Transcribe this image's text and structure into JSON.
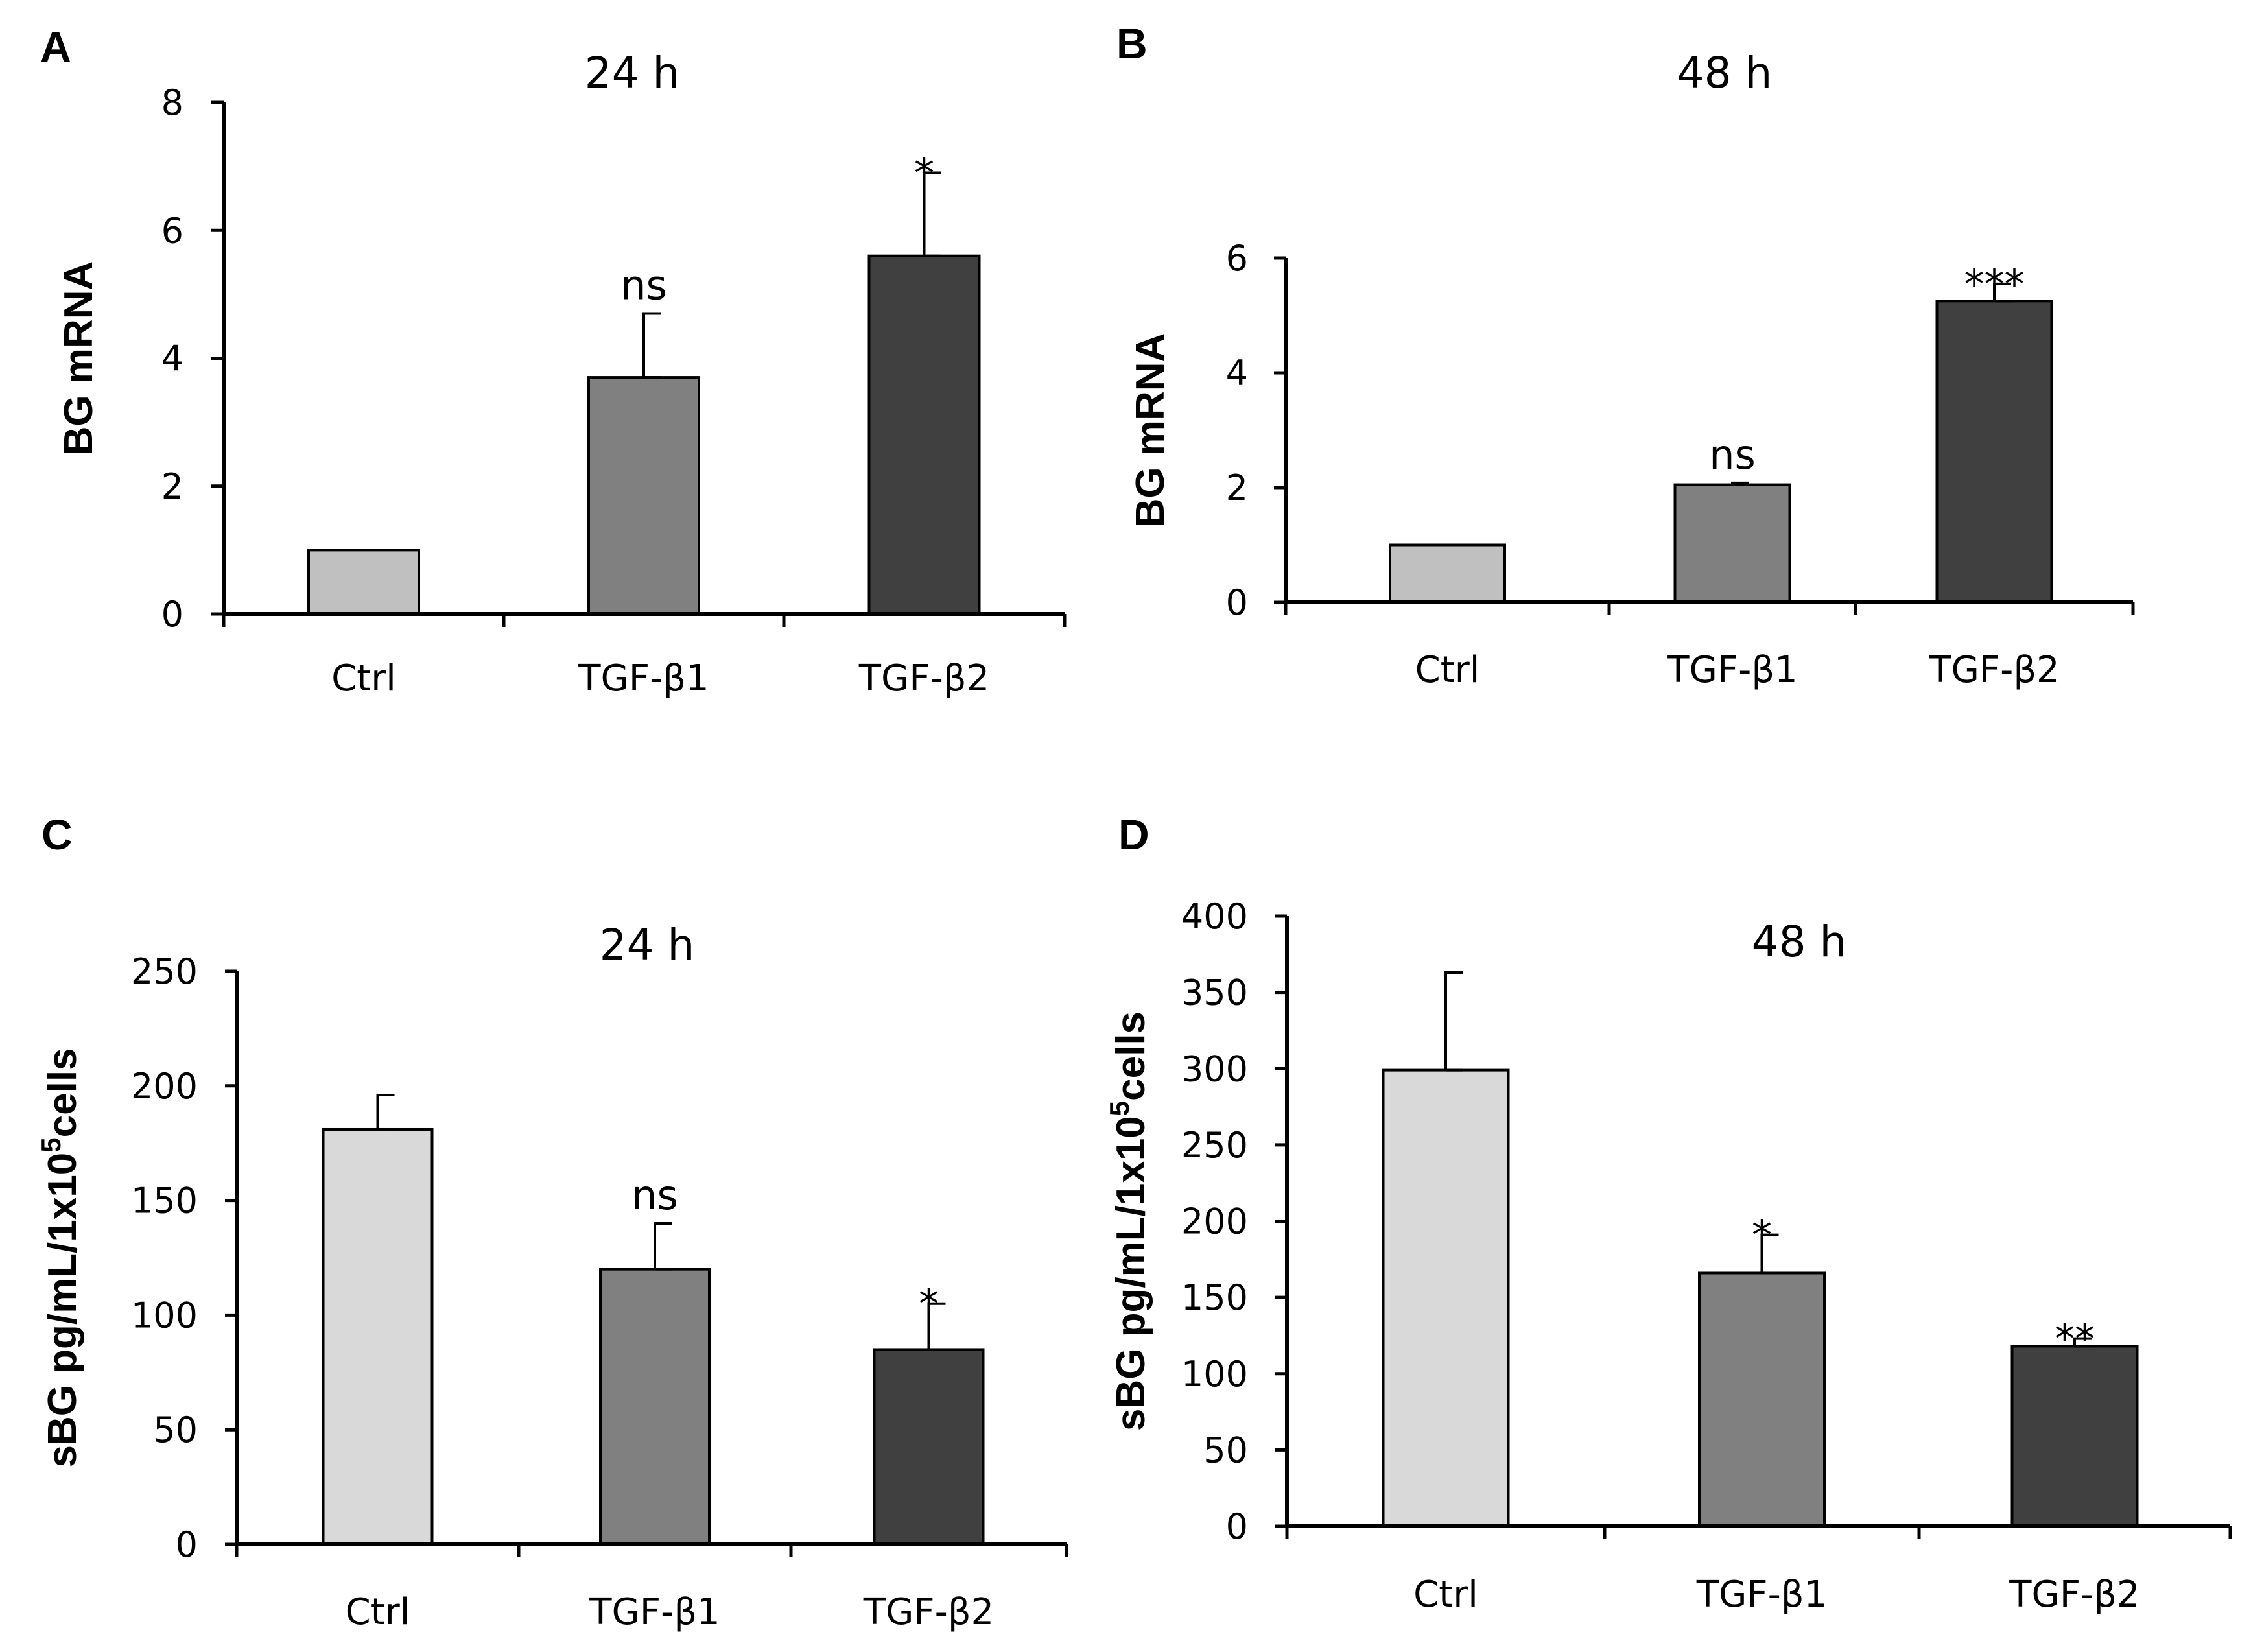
{
  "chart_data": [
    {
      "panel": "A",
      "type": "bar",
      "title": "24 h",
      "ylabel": "BG mRNA",
      "xlabel": "",
      "categories": [
        "Ctrl",
        "TGF-β1",
        "TGF-β2"
      ],
      "values": [
        1.0,
        3.7,
        5.6
      ],
      "errors": [
        0,
        1.0,
        1.3
      ],
      "significance": [
        "",
        "ns",
        "*"
      ],
      "colors": [
        "#c0c0c0",
        "#808080",
        "#404040"
      ],
      "ylim": [
        0,
        8
      ],
      "yticks": [
        0,
        2,
        4,
        6,
        8
      ]
    },
    {
      "panel": "B",
      "type": "bar",
      "title": "48 h",
      "ylabel": "BG mRNA",
      "xlabel": "",
      "categories": [
        "Ctrl",
        "TGF-β1",
        "TGF-β2"
      ],
      "values": [
        1.0,
        2.05,
        5.25
      ],
      "errors": [
        0,
        0.03,
        0.3
      ],
      "significance": [
        "",
        "ns",
        "***"
      ],
      "colors": [
        "#c0c0c0",
        "#808080",
        "#404040"
      ],
      "ylim": [
        0,
        6
      ],
      "yticks": [
        0,
        2,
        4,
        6
      ]
    },
    {
      "panel": "C",
      "type": "bar",
      "title": "24 h",
      "ylabel": "sBG pg/mL/1x10",
      "ylabel_sup": "5",
      "ylabel_end": "cells",
      "xlabel": "",
      "categories": [
        "Ctrl",
        "TGF-β1",
        "TGF-β2"
      ],
      "values": [
        181,
        120,
        85
      ],
      "errors": [
        15,
        20,
        20
      ],
      "significance": [
        "",
        "ns",
        "*"
      ],
      "colors": [
        "#d9d9d9",
        "#808080",
        "#404040"
      ],
      "ylim": [
        0,
        250
      ],
      "yticks": [
        0,
        50,
        100,
        150,
        200,
        250
      ]
    },
    {
      "panel": "D",
      "type": "bar",
      "title": "48 h",
      "ylabel": "sBG pg/mL/1x10",
      "ylabel_sup": "5",
      "ylabel_end": "cells",
      "xlabel": "",
      "categories": [
        "Ctrl",
        "TGF-β1",
        "TGF-β2"
      ],
      "values": [
        299,
        166,
        118
      ],
      "errors": [
        64,
        25,
        5
      ],
      "significance": [
        "",
        "*",
        "**"
      ],
      "colors": [
        "#d9d9d9",
        "#808080",
        "#404040"
      ],
      "ylim": [
        0,
        400
      ],
      "yticks": [
        0,
        50,
        100,
        150,
        200,
        250,
        300,
        350,
        400
      ]
    }
  ]
}
